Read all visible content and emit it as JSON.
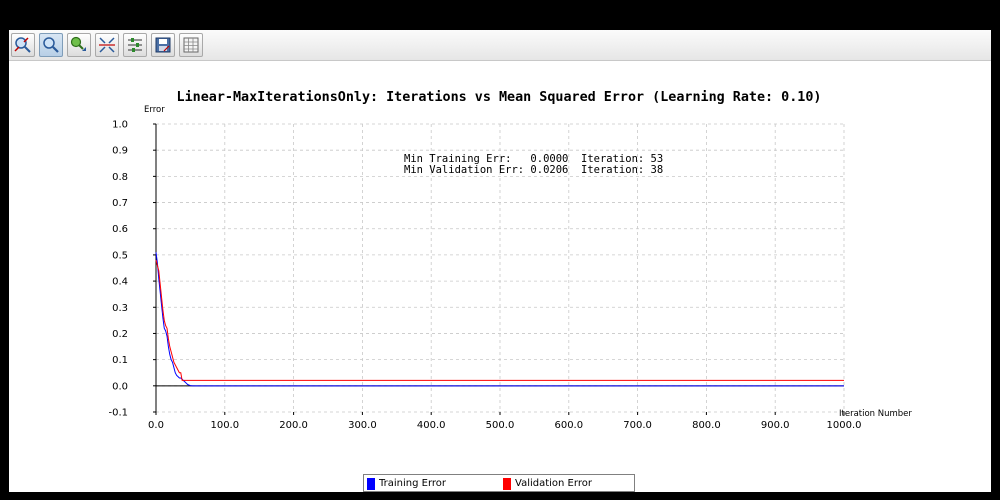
{
  "toolbar": {
    "buttons": [
      {
        "icon": "zoom-reset-icon"
      },
      {
        "icon": "zoom-icon"
      },
      {
        "icon": "pan-icon"
      },
      {
        "icon": "fit-icon"
      },
      {
        "icon": "axis-settings-icon"
      },
      {
        "icon": "save-icon"
      },
      {
        "icon": "table-icon"
      }
    ]
  },
  "colors": {
    "training": "#0000ff",
    "validation": "#ff0000",
    "grid": "#c8c8c8",
    "background": "#000000"
  },
  "stats": {
    "line1": "Min Training Err:   0.0000  Iteration: 53",
    "line2": "Min Validation Err: 0.0206  Iteration: 38"
  },
  "chart_data": {
    "type": "line",
    "title": "Linear-MaxIterationsOnly: Iterations vs Mean Squared Error (Learning Rate: 0.10)",
    "xlabel": "Iteration Number",
    "ylabel": "Error",
    "xlim": [
      0,
      1000
    ],
    "ylim": [
      -0.1,
      1.0
    ],
    "xticks": [
      0,
      100,
      200,
      300,
      400,
      500,
      600,
      700,
      800,
      900,
      1000
    ],
    "yticks": [
      -0.1,
      0.0,
      0.1,
      0.2,
      0.3,
      0.4,
      0.5,
      0.6,
      0.7,
      0.8,
      0.9,
      1.0
    ],
    "xtick_labels": [
      "0.0",
      "100.0",
      "200.0",
      "300.0",
      "400.0",
      "500.0",
      "600.0",
      "700.0",
      "800.0",
      "900.0",
      "1000.0"
    ],
    "ytick_labels": [
      "-0.1",
      "0.0",
      "0.1",
      "0.2",
      "0.3",
      "0.4",
      "0.5",
      "0.6",
      "0.7",
      "0.8",
      "0.9",
      "1.0"
    ],
    "grid": true,
    "legend": "bottom",
    "series": [
      {
        "name": "Training Error",
        "color": "#0000ff",
        "x": [
          0,
          2,
          4,
          6,
          8,
          10,
          12,
          14,
          16,
          18,
          20,
          22,
          24,
          26,
          28,
          30,
          32,
          34,
          36,
          38,
          40,
          42,
          44,
          46,
          48,
          50,
          53,
          60,
          100,
          200,
          400,
          600,
          800,
          1000
        ],
        "y": [
          0.51,
          0.47,
          0.41,
          0.36,
          0.31,
          0.26,
          0.22,
          0.21,
          0.19,
          0.15,
          0.12,
          0.1,
          0.09,
          0.07,
          0.05,
          0.04,
          0.035,
          0.03,
          0.03,
          0.025,
          0.02,
          0.015,
          0.01,
          0.005,
          0.003,
          0.001,
          0.0,
          0.0,
          0.0,
          0.0,
          0.0,
          0.0,
          0.0,
          0.0
        ]
      },
      {
        "name": "Validation Error",
        "color": "#ff0000",
        "x": [
          0,
          2,
          4,
          6,
          8,
          10,
          12,
          14,
          16,
          18,
          20,
          22,
          24,
          26,
          28,
          30,
          32,
          34,
          36,
          38,
          40,
          45,
          50,
          100,
          200,
          400,
          600,
          800,
          1000
        ],
        "y": [
          0.48,
          0.46,
          0.44,
          0.39,
          0.34,
          0.29,
          0.25,
          0.23,
          0.22,
          0.18,
          0.15,
          0.13,
          0.11,
          0.09,
          0.08,
          0.07,
          0.06,
          0.05,
          0.05,
          0.0206,
          0.0206,
          0.0206,
          0.0206,
          0.0206,
          0.0206,
          0.0206,
          0.0206,
          0.0206,
          0.0206
        ]
      }
    ]
  }
}
